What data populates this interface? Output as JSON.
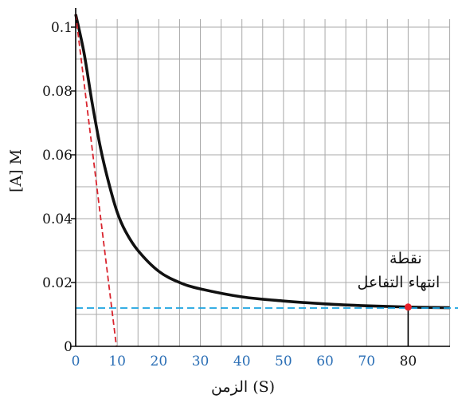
{
  "chart_data": {
    "type": "line",
    "xlabel": "الزمن (S)",
    "ylabel": "[A] M",
    "xlim": [
      0,
      92
    ],
    "ylim": [
      0,
      0.106
    ],
    "grid": true,
    "x_ticks": [
      0,
      10,
      20,
      30,
      40,
      50,
      60,
      70,
      80
    ],
    "x_tick_labels": [
      "0",
      "10",
      "20",
      "30",
      "40",
      "50",
      "60",
      "70",
      "80"
    ],
    "y_ticks": [
      0,
      0.02,
      0.04,
      0.06,
      0.08,
      0.1
    ],
    "y_tick_labels": [
      "0",
      "0.02",
      "0.04",
      "0.06",
      "0.08",
      "0.1"
    ],
    "series": [
      {
        "color": "#111111",
        "style": "solid",
        "x": [
          0,
          2,
          4,
          6,
          8,
          10,
          12,
          15,
          20,
          25,
          30,
          40,
          50,
          60,
          70,
          80,
          90
        ],
        "y": [
          0.104,
          0.092,
          0.076,
          0.062,
          0.051,
          0.042,
          0.036,
          0.03,
          0.0235,
          0.02,
          0.018,
          0.0155,
          0.0142,
          0.0133,
          0.0127,
          0.0123,
          0.0121
        ]
      },
      {
        "color": "#d9232d",
        "style": "dashed",
        "x": [
          0,
          9.8
        ],
        "y": [
          0.104,
          0
        ]
      },
      {
        "color": "#1aa3e0",
        "style": "dashed",
        "x": [
          0,
          92
        ],
        "y": [
          0.012,
          0.012
        ]
      }
    ],
    "highlight_point": {
      "x": 80,
      "y": 0.0123,
      "color": "#e8202a"
    },
    "annotation": {
      "line1": "نقطة",
      "line2": "انتهاء التفاعل"
    }
  }
}
